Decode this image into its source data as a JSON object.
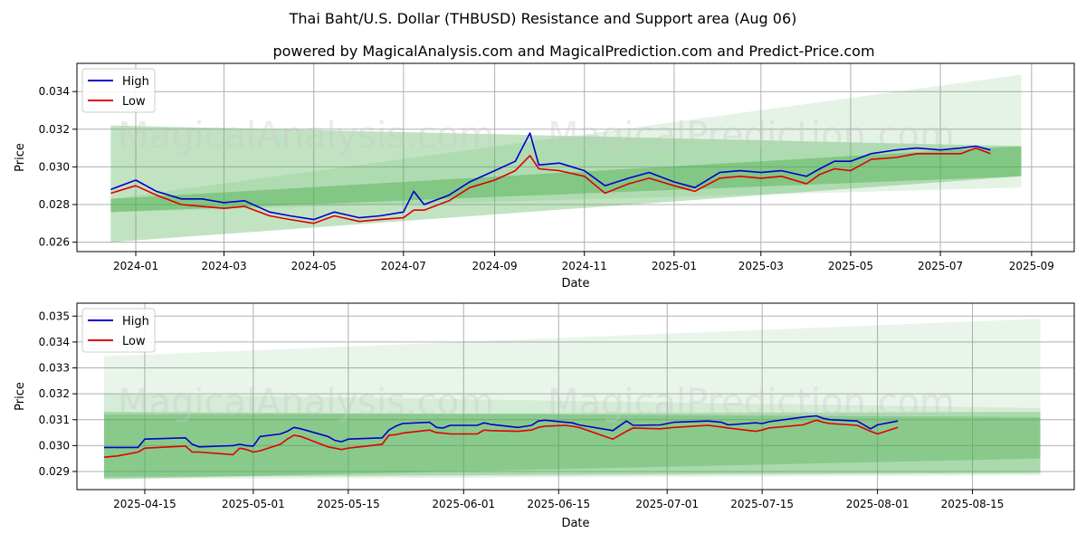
{
  "title": "Thai Baht/U.S. Dollar (THBUSD) Resistance and Support area (Aug 06)",
  "subtitle": "powered by MagicalAnalysis.com and MagicalPrediction.com and Predict-Price.com",
  "watermarks": [
    "MagicalAnalysis.com",
    "MagicalPrediction.com"
  ],
  "colors": {
    "high": "#0000cc",
    "low": "#e00000",
    "band": "#4caf50"
  },
  "chart_data": [
    {
      "type": "line",
      "xlabel": "Date",
      "ylabel": "Price",
      "xlim": [
        "2023-11-22",
        "2025-09-30"
      ],
      "ylim": [
        0.0255,
        0.0355
      ],
      "x_ticks": [
        "2024-01-01",
        "2024-03-01",
        "2024-05-01",
        "2024-07-01",
        "2024-09-01",
        "2024-11-01",
        "2025-01-01",
        "2025-03-01",
        "2025-05-01",
        "2025-07-01",
        "2025-09-01"
      ],
      "x_tick_labels": [
        "2024-01",
        "2024-03",
        "2024-05",
        "2024-07",
        "2024-09",
        "2024-11",
        "2025-01",
        "2025-03",
        "2025-05",
        "2025-07",
        "2025-09"
      ],
      "y_ticks": [
        0.026,
        0.028,
        0.03,
        0.032,
        0.034
      ],
      "y_tick_labels": [
        "0.026",
        "0.028",
        "0.030",
        "0.032",
        "0.034"
      ],
      "grid": true,
      "legend_position": "top-left",
      "series": [
        {
          "name": "High",
          "x": [
            "2023-12-15",
            "2024-01-01",
            "2024-01-15",
            "2024-02-01",
            "2024-02-15",
            "2024-03-01",
            "2024-03-15",
            "2024-04-01",
            "2024-04-15",
            "2024-05-01",
            "2024-05-15",
            "2024-06-01",
            "2024-06-15",
            "2024-07-01",
            "2024-07-08",
            "2024-07-15",
            "2024-08-01",
            "2024-08-15",
            "2024-09-01",
            "2024-09-15",
            "2024-09-25",
            "2024-10-01",
            "2024-10-15",
            "2024-11-01",
            "2024-11-15",
            "2024-12-01",
            "2024-12-15",
            "2025-01-01",
            "2025-01-15",
            "2025-02-01",
            "2025-02-15",
            "2025-03-01",
            "2025-03-15",
            "2025-04-01",
            "2025-04-10",
            "2025-04-20",
            "2025-05-01",
            "2025-05-15",
            "2025-06-01",
            "2025-06-15",
            "2025-07-01",
            "2025-07-15",
            "2025-07-25",
            "2025-08-04"
          ],
          "values": [
            0.0288,
            0.0293,
            0.0287,
            0.0283,
            0.0283,
            0.0281,
            0.0282,
            0.0276,
            0.0274,
            0.0272,
            0.0276,
            0.0273,
            0.0274,
            0.0276,
            0.0287,
            0.028,
            0.0285,
            0.0292,
            0.0298,
            0.0303,
            0.0318,
            0.0301,
            0.0302,
            0.0298,
            0.029,
            0.0294,
            0.0297,
            0.0292,
            0.0289,
            0.0297,
            0.0298,
            0.0297,
            0.0298,
            0.0295,
            0.0299,
            0.0303,
            0.0303,
            0.0307,
            0.0309,
            0.031,
            0.0309,
            0.031,
            0.0311,
            0.0309
          ]
        },
        {
          "name": "Low",
          "x": [
            "2023-12-15",
            "2024-01-01",
            "2024-01-15",
            "2024-02-01",
            "2024-02-15",
            "2024-03-01",
            "2024-03-15",
            "2024-04-01",
            "2024-04-15",
            "2024-05-01",
            "2024-05-15",
            "2024-06-01",
            "2024-06-15",
            "2024-07-01",
            "2024-07-08",
            "2024-07-15",
            "2024-08-01",
            "2024-08-15",
            "2024-09-01",
            "2024-09-15",
            "2024-09-25",
            "2024-10-01",
            "2024-10-15",
            "2024-11-01",
            "2024-11-15",
            "2024-12-01",
            "2024-12-15",
            "2025-01-01",
            "2025-01-15",
            "2025-02-01",
            "2025-02-15",
            "2025-03-01",
            "2025-03-15",
            "2025-04-01",
            "2025-04-10",
            "2025-04-20",
            "2025-05-01",
            "2025-05-15",
            "2025-06-01",
            "2025-06-15",
            "2025-07-01",
            "2025-07-15",
            "2025-07-25",
            "2025-08-04"
          ],
          "values": [
            0.0286,
            0.029,
            0.0285,
            0.028,
            0.0279,
            0.0278,
            0.0279,
            0.0274,
            0.0272,
            0.027,
            0.0274,
            0.0271,
            0.0272,
            0.0273,
            0.0277,
            0.0277,
            0.0282,
            0.0289,
            0.0293,
            0.0298,
            0.0306,
            0.0299,
            0.0298,
            0.0295,
            0.0286,
            0.0291,
            0.0294,
            0.029,
            0.0287,
            0.0294,
            0.0295,
            0.0294,
            0.0295,
            0.0291,
            0.0296,
            0.0299,
            0.0298,
            0.0304,
            0.0305,
            0.0307,
            0.0307,
            0.0307,
            0.031,
            0.0307
          ]
        }
      ],
      "bands": [
        {
          "x": [
            "2023-12-15",
            "2025-08-25"
          ],
          "lower": [
            0.026,
            0.0295
          ],
          "upper": [
            0.0322,
            0.0311
          ],
          "opacity": 0.35
        },
        {
          "x": [
            "2023-12-15",
            "2025-08-25"
          ],
          "lower": [
            0.0276,
            0.0295
          ],
          "upper": [
            0.0283,
            0.0311
          ],
          "opacity": 0.45
        },
        {
          "x": [
            "2023-12-15",
            "2025-08-25"
          ],
          "lower": [
            0.0276,
            0.0289
          ],
          "upper": [
            0.0283,
            0.0349
          ],
          "opacity": 0.15
        }
      ]
    },
    {
      "type": "line",
      "xlabel": "Date",
      "ylabel": "Price",
      "xlim": [
        "2025-04-05",
        "2025-08-30"
      ],
      "ylim": [
        0.0283,
        0.0355
      ],
      "x_ticks": [
        "2025-04-15",
        "2025-05-01",
        "2025-05-15",
        "2025-06-01",
        "2025-06-15",
        "2025-07-01",
        "2025-07-15",
        "2025-08-01",
        "2025-08-15"
      ],
      "x_tick_labels": [
        "2025-04-15",
        "2025-05-01",
        "2025-05-15",
        "2025-06-01",
        "2025-06-15",
        "2025-07-01",
        "2025-07-15",
        "2025-08-01",
        "2025-08-15"
      ],
      "y_ticks": [
        0.029,
        0.03,
        0.031,
        0.032,
        0.033,
        0.034,
        0.035
      ],
      "y_tick_labels": [
        "0.029",
        "0.030",
        "0.031",
        "0.032",
        "0.033",
        "0.034",
        "0.035"
      ],
      "grid": true,
      "legend_position": "top-left",
      "series": [
        {
          "name": "High",
          "x": [
            "2025-04-09",
            "2025-04-11",
            "2025-04-14",
            "2025-04-15",
            "2025-04-21",
            "2025-04-22",
            "2025-04-23",
            "2025-04-28",
            "2025-04-29",
            "2025-04-30",
            "2025-05-01",
            "2025-05-02",
            "2025-05-05",
            "2025-05-06",
            "2025-05-07",
            "2025-05-08",
            "2025-05-12",
            "2025-05-13",
            "2025-05-14",
            "2025-05-15",
            "2025-05-20",
            "2025-05-21",
            "2025-05-22",
            "2025-05-23",
            "2025-05-27",
            "2025-05-28",
            "2025-05-29",
            "2025-05-30",
            "2025-06-03",
            "2025-06-04",
            "2025-06-05",
            "2025-06-09",
            "2025-06-11",
            "2025-06-12",
            "2025-06-13",
            "2025-06-16",
            "2025-06-17",
            "2025-06-18",
            "2025-06-23",
            "2025-06-25",
            "2025-06-26",
            "2025-06-30",
            "2025-07-02",
            "2025-07-07",
            "2025-07-09",
            "2025-07-10",
            "2025-07-14",
            "2025-07-15",
            "2025-07-16",
            "2025-07-21",
            "2025-07-23",
            "2025-07-24",
            "2025-07-25",
            "2025-07-29",
            "2025-07-31",
            "2025-08-01",
            "2025-08-04"
          ],
          "values": [
            0.02993,
            0.02993,
            0.02993,
            0.03025,
            0.0303,
            0.03005,
            0.02995,
            0.03,
            0.03005,
            0.03,
            0.02998,
            0.03035,
            0.03045,
            0.03055,
            0.0307,
            0.03065,
            0.03035,
            0.0302,
            0.03015,
            0.03025,
            0.0303,
            0.0306,
            0.03075,
            0.03085,
            0.0309,
            0.0307,
            0.03068,
            0.03078,
            0.03078,
            0.03088,
            0.03082,
            0.0307,
            0.03078,
            0.03095,
            0.03098,
            0.0309,
            0.03088,
            0.0308,
            0.03058,
            0.03095,
            0.03078,
            0.0308,
            0.0309,
            0.03095,
            0.0309,
            0.0308,
            0.03088,
            0.03085,
            0.03092,
            0.0311,
            0.03115,
            0.03105,
            0.031,
            0.03095,
            0.03065,
            0.0308,
            0.03095
          ]
        },
        {
          "name": "Low",
          "x": [
            "2025-04-09",
            "2025-04-11",
            "2025-04-14",
            "2025-04-15",
            "2025-04-21",
            "2025-04-22",
            "2025-04-23",
            "2025-04-28",
            "2025-04-29",
            "2025-04-30",
            "2025-05-01",
            "2025-05-02",
            "2025-05-05",
            "2025-05-06",
            "2025-05-07",
            "2025-05-08",
            "2025-05-12",
            "2025-05-13",
            "2025-05-14",
            "2025-05-15",
            "2025-05-20",
            "2025-05-21",
            "2025-05-22",
            "2025-05-23",
            "2025-05-27",
            "2025-05-28",
            "2025-05-29",
            "2025-05-30",
            "2025-06-03",
            "2025-06-04",
            "2025-06-05",
            "2025-06-09",
            "2025-06-11",
            "2025-06-12",
            "2025-06-13",
            "2025-06-16",
            "2025-06-17",
            "2025-06-18",
            "2025-06-23",
            "2025-06-25",
            "2025-06-26",
            "2025-06-30",
            "2025-07-02",
            "2025-07-07",
            "2025-07-09",
            "2025-07-10",
            "2025-07-14",
            "2025-07-15",
            "2025-07-16",
            "2025-07-21",
            "2025-07-23",
            "2025-07-24",
            "2025-07-25",
            "2025-07-29",
            "2025-07-31",
            "2025-08-01",
            "2025-08-04"
          ],
          "values": [
            0.02955,
            0.0296,
            0.02975,
            0.0299,
            0.02998,
            0.02975,
            0.02975,
            0.02965,
            0.0299,
            0.02985,
            0.02975,
            0.0298,
            0.03005,
            0.03025,
            0.0304,
            0.03035,
            0.02995,
            0.0299,
            0.02985,
            0.0299,
            0.03005,
            0.0304,
            0.03042,
            0.03048,
            0.0306,
            0.0305,
            0.03048,
            0.03045,
            0.03045,
            0.0306,
            0.03058,
            0.03055,
            0.0306,
            0.0307,
            0.03075,
            0.03078,
            0.03075,
            0.0307,
            0.03025,
            0.03055,
            0.03068,
            0.03065,
            0.0307,
            0.03078,
            0.03072,
            0.03068,
            0.03055,
            0.0306,
            0.03068,
            0.0308,
            0.03098,
            0.0309,
            0.03085,
            0.03078,
            0.03055,
            0.03045,
            0.0307
          ]
        }
      ],
      "bands": [
        {
          "x": [
            "2025-04-09",
            "2025-08-25"
          ],
          "lower": [
            0.0287,
            0.0295
          ],
          "upper": [
            0.0313,
            0.0311
          ],
          "opacity": 0.35
        },
        {
          "x": [
            "2025-04-09",
            "2025-08-25"
          ],
          "lower": [
            0.0288,
            0.02895
          ],
          "upper": [
            0.0312,
            0.0313
          ],
          "opacity": 0.3
        },
        {
          "x": [
            "2025-04-09",
            "2025-08-25"
          ],
          "lower": [
            0.0287,
            0.02885
          ],
          "upper": [
            0.03345,
            0.0349
          ],
          "opacity": 0.12
        },
        {
          "x": [
            "2025-04-09",
            "2025-08-25"
          ],
          "lower": [
            0.02875,
            0.0289
          ],
          "upper": [
            0.032,
            0.03145
          ],
          "opacity": 0.12
        }
      ]
    }
  ]
}
